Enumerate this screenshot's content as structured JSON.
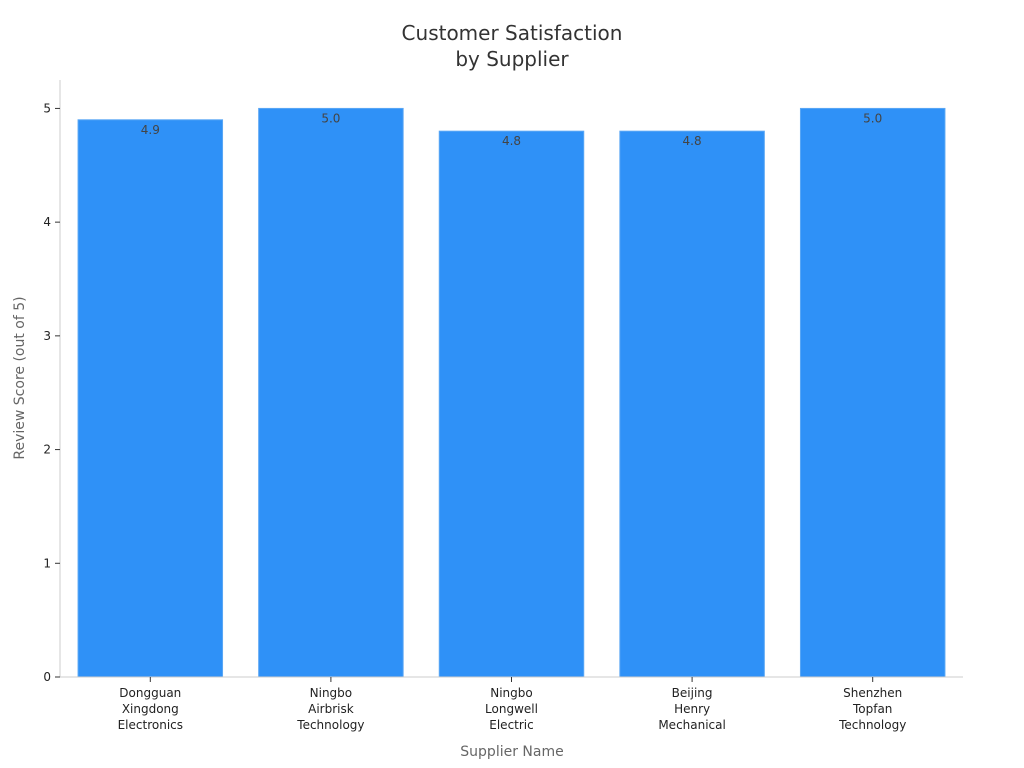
{
  "chart_data": {
    "type": "bar",
    "title": [
      "Customer Satisfaction",
      "by Supplier"
    ],
    "xlabel": "Supplier Name",
    "ylabel": "Review Score (out of 5)",
    "ylim": [
      0,
      5.25
    ],
    "yticks": [
      "0",
      "1",
      "2",
      "3",
      "4",
      "5"
    ],
    "categories": [
      [
        "Dongguan",
        "Xingdong",
        "Electronics"
      ],
      [
        "Ningbo",
        "Airbrisk",
        "Technology"
      ],
      [
        "Ningbo",
        "Longwell",
        "Electric"
      ],
      [
        "Beijing",
        "Henry",
        "Mechanical"
      ],
      [
        "Shenzhen",
        "Topfan",
        "Technology"
      ]
    ],
    "values": [
      4.9,
      5.0,
      4.8,
      4.8,
      5.0
    ],
    "data_labels": [
      "4.9",
      "5.0",
      "4.8",
      "4.8",
      "5.0"
    ],
    "colors": {
      "bar": "#2f91f7",
      "bar_edge": "#5aa7f5",
      "axis": "#cccccc",
      "tick": "#333333"
    },
    "grid": false,
    "legend": "none"
  }
}
